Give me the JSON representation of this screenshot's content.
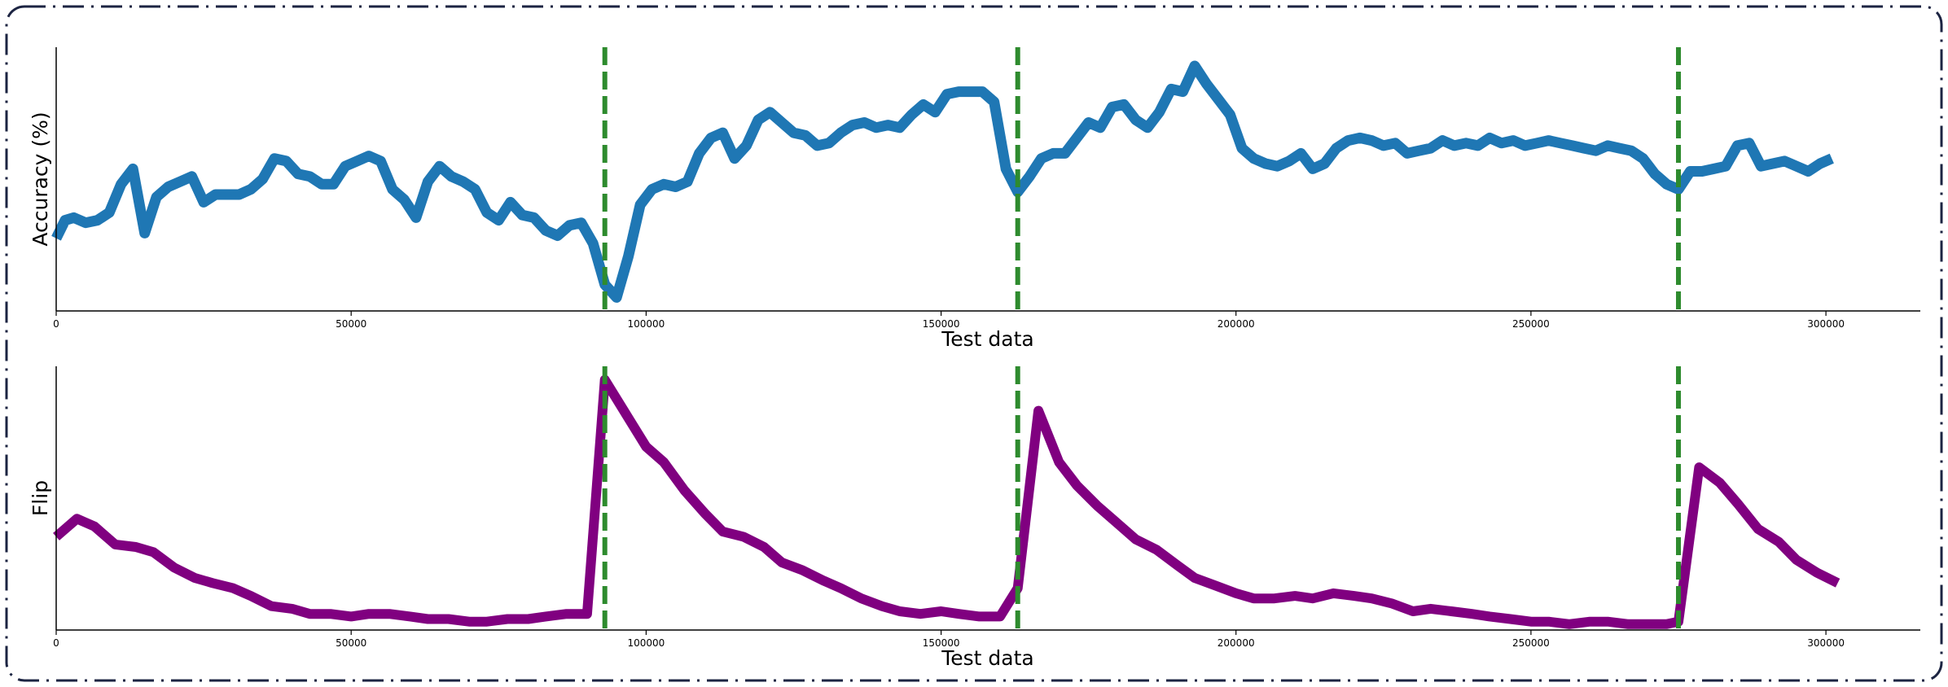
{
  "chart_data": [
    {
      "type": "line",
      "title": "",
      "xlabel": "Test data",
      "ylabel": "Accuracy (%)",
      "xlim": [
        0,
        316000
      ],
      "x_ticks": [
        "0",
        "50000",
        "100000",
        "150000",
        "200000",
        "250000",
        "300000"
      ],
      "x_tick_values": [
        0,
        50000,
        100000,
        150000,
        200000,
        250000,
        300000
      ],
      "y_ticks_shown": false,
      "ylim": [
        0,
        100
      ],
      "grid": false,
      "legend": "none",
      "drift_lines": {
        "x": [
          93000,
          163000,
          275000
        ],
        "color": "#2e8b2e",
        "style": "dashed"
      },
      "series": [
        {
          "color": "#1f77b4",
          "x": [
            0,
            1500,
            3000,
            5000,
            7000,
            9000,
            11000,
            13000,
            15000,
            17000,
            19000,
            21000,
            23000,
            25000,
            27000,
            29000,
            31000,
            33000,
            35000,
            37000,
            39000,
            41000,
            43000,
            45000,
            47000,
            49000,
            51000,
            53000,
            55000,
            57000,
            59000,
            61000,
            63000,
            65000,
            67000,
            69000,
            71000,
            73000,
            75000,
            77000,
            79000,
            81000,
            83000,
            85000,
            87000,
            89000,
            91000,
            93000,
            95000,
            97000,
            99000,
            101000,
            103000,
            105000,
            107000,
            109000,
            111000,
            113000,
            115000,
            117000,
            119000,
            121000,
            123000,
            125000,
            127000,
            129000,
            131000,
            133000,
            135000,
            137000,
            139000,
            141000,
            143000,
            145000,
            147000,
            149000,
            151000,
            153000,
            155000,
            157000,
            159000,
            161000,
            163000,
            165000,
            167000,
            169000,
            171000,
            173000,
            175000,
            177000,
            179000,
            181000,
            183000,
            185000,
            187000,
            189000,
            191000,
            193000,
            195000,
            197000,
            199000,
            201000,
            203000,
            205000,
            207000,
            209000,
            211000,
            213000,
            215000,
            217000,
            219000,
            221000,
            223000,
            225000,
            227000,
            229000,
            231000,
            233000,
            235000,
            237000,
            239000,
            241000,
            243000,
            245000,
            247000,
            249000,
            251000,
            253000,
            255000,
            257000,
            259000,
            261000,
            263000,
            265000,
            267000,
            269000,
            271000,
            273000,
            275000,
            277000,
            279000,
            281000,
            283000,
            285000,
            287000,
            289000,
            291000,
            293000,
            295000,
            297000,
            299000,
            301000
          ],
          "y": [
            27,
            34,
            35,
            33,
            34,
            37,
            48,
            54,
            29,
            43,
            47,
            49,
            51,
            41,
            44,
            44,
            44,
            46,
            50,
            58,
            57,
            52,
            51,
            48,
            48,
            55,
            57,
            59,
            57,
            46,
            42,
            35,
            49,
            55,
            51,
            49,
            46,
            37,
            34,
            41,
            36,
            35,
            30,
            28,
            32,
            33,
            25,
            9,
            4,
            20,
            40,
            46,
            48,
            47,
            49,
            60,
            66,
            68,
            58,
            63,
            73,
            76,
            72,
            68,
            67,
            63,
            64,
            68,
            71,
            72,
            70,
            71,
            70,
            75,
            79,
            76,
            83,
            84,
            84,
            84,
            80,
            54,
            45,
            51,
            58,
            60,
            60,
            66,
            72,
            70,
            78,
            79,
            73,
            70,
            76,
            85,
            84,
            94,
            87,
            81,
            75,
            62,
            58,
            56,
            55,
            57,
            60,
            54,
            56,
            62,
            65,
            66,
            65,
            63,
            64,
            60,
            61,
            62,
            65,
            63,
            64,
            63,
            66,
            64,
            65,
            63,
            64,
            65,
            64,
            63,
            62,
            61,
            63,
            62,
            61,
            58,
            52,
            48,
            46,
            53,
            53,
            54,
            55,
            63,
            64,
            55,
            56,
            57,
            55,
            53,
            56,
            58
          ]
        }
      ]
    },
    {
      "type": "line",
      "title": "",
      "xlabel": "Test data",
      "ylabel": "Flip",
      "xlim": [
        0,
        316000
      ],
      "x_ticks": [
        "0",
        "50000",
        "100000",
        "150000",
        "200000",
        "250000",
        "300000"
      ],
      "x_tick_values": [
        0,
        50000,
        100000,
        150000,
        200000,
        250000,
        300000
      ],
      "y_ticks_shown": false,
      "ylim": [
        0,
        100
      ],
      "grid": false,
      "legend": "none",
      "drift_lines": {
        "x": [
          93000,
          163000,
          275000
        ],
        "color": "#2e8b2e",
        "style": "dashed"
      },
      "series": [
        {
          "color": "#800080",
          "x": [
            0,
            3500,
            6500,
            10000,
            13500,
            16500,
            20000,
            23500,
            26500,
            30000,
            33000,
            36500,
            40000,
            43000,
            46500,
            50000,
            53000,
            56500,
            60000,
            63000,
            66500,
            70000,
            73000,
            76500,
            80000,
            83000,
            86500,
            90000,
            93000,
            96500,
            100000,
            103000,
            106500,
            110000,
            113000,
            116500,
            120000,
            123000,
            126500,
            130000,
            133000,
            136500,
            140000,
            143000,
            146500,
            150000,
            153000,
            156500,
            160000,
            163000,
            166500,
            170000,
            173000,
            176500,
            180000,
            183000,
            186500,
            190000,
            193000,
            196500,
            200000,
            203000,
            206500,
            210000,
            213000,
            216500,
            220000,
            223000,
            226500,
            230000,
            233000,
            236500,
            240000,
            243000,
            246500,
            250000,
            253000,
            256500,
            260000,
            263000,
            266500,
            270000,
            273000,
            275000,
            278500,
            282000,
            285000,
            288500,
            292000,
            295000,
            298500,
            302000
          ],
          "y": [
            35,
            42,
            39,
            32,
            31,
            29,
            23,
            19,
            17,
            15,
            12,
            8,
            7,
            5,
            5,
            4,
            5,
            5,
            4,
            3,
            3,
            2,
            2,
            3,
            3,
            4,
            5,
            5,
            96,
            83,
            70,
            64,
            53,
            44,
            37,
            35,
            31,
            25,
            22,
            18,
            15,
            11,
            8,
            6,
            5,
            6,
            5,
            4,
            4,
            15,
            84,
            64,
            55,
            47,
            40,
            34,
            30,
            24,
            19,
            16,
            13,
            11,
            11,
            12,
            11,
            13,
            12,
            11,
            9,
            6,
            7,
            6,
            5,
            4,
            3,
            2,
            2,
            1,
            2,
            2,
            1,
            1,
            1,
            2,
            62,
            56,
            48,
            38,
            33,
            26,
            21,
            17
          ]
        }
      ]
    }
  ]
}
